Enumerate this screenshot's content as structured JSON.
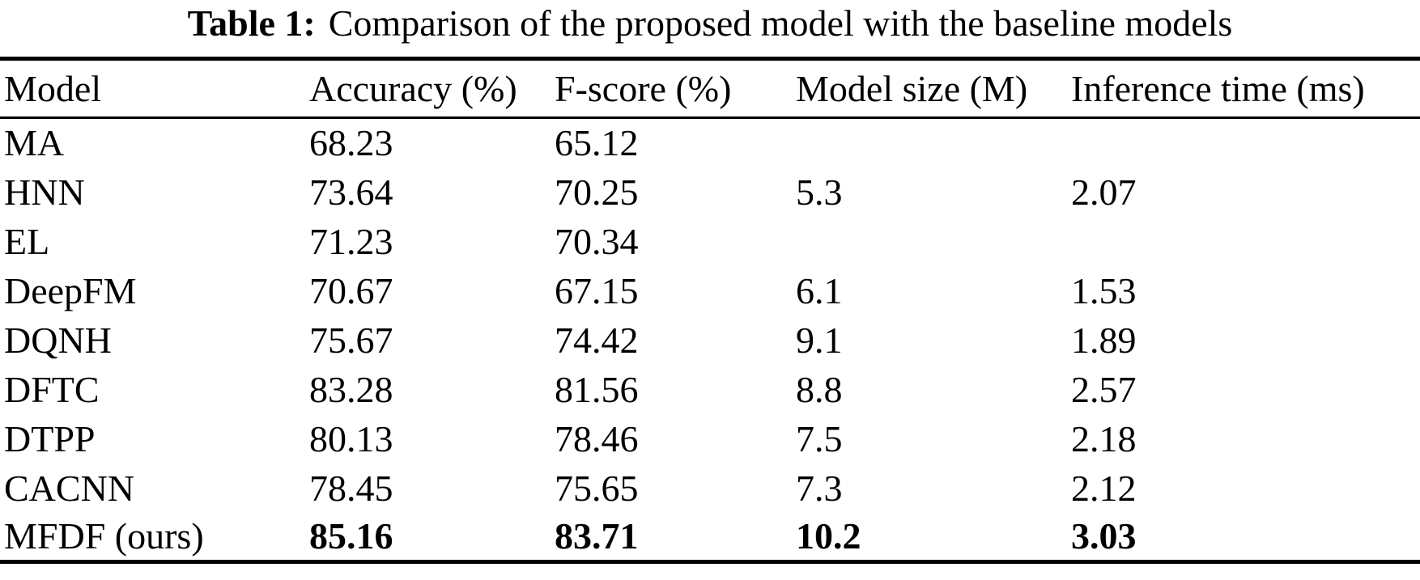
{
  "caption": {
    "label": "Table 1:",
    "text": "Comparison of the proposed model with the baseline models"
  },
  "table": {
    "columns": [
      "Model",
      "Accuracy (%)",
      "F-score (%)",
      "Model size (M)",
      "Inference time (ms)"
    ],
    "rows": [
      {
        "cells": [
          "MA",
          "68.23",
          "65.12",
          "",
          ""
        ],
        "bold": false
      },
      {
        "cells": [
          "HNN",
          "73.64",
          "70.25",
          "5.3",
          "2.07"
        ],
        "bold": false
      },
      {
        "cells": [
          "EL",
          "71.23",
          "70.34",
          "",
          ""
        ],
        "bold": false
      },
      {
        "cells": [
          "DeepFM",
          "70.67",
          "67.15",
          "6.1",
          "1.53"
        ],
        "bold": false
      },
      {
        "cells": [
          "DQNH",
          "75.67",
          "74.42",
          "9.1",
          "1.89"
        ],
        "bold": false
      },
      {
        "cells": [
          "DFTC",
          "83.28",
          "81.56",
          "8.8",
          "2.57"
        ],
        "bold": false
      },
      {
        "cells": [
          "DTPP",
          "80.13",
          "78.46",
          "7.5",
          "2.18"
        ],
        "bold": false
      },
      {
        "cells": [
          "CACNN",
          "78.45",
          "75.65",
          "7.3",
          "2.12"
        ],
        "bold": false
      },
      {
        "cells": [
          "MFDF (ours)",
          "85.16",
          "83.71",
          "10.2",
          "3.03"
        ],
        "bold": true
      }
    ]
  },
  "chart_data": {
    "type": "table",
    "title": "Table 1: Comparison of the proposed model with the baseline models",
    "columns": [
      "Model",
      "Accuracy (%)",
      "F-score (%)",
      "Model size (M)",
      "Inference time (ms)"
    ],
    "rows": [
      [
        "MA",
        68.23,
        65.12,
        null,
        null
      ],
      [
        "HNN",
        73.64,
        70.25,
        5.3,
        2.07
      ],
      [
        "EL",
        71.23,
        70.34,
        null,
        null
      ],
      [
        "DeepFM",
        70.67,
        67.15,
        6.1,
        1.53
      ],
      [
        "DQNH",
        75.67,
        74.42,
        9.1,
        1.89
      ],
      [
        "DFTC",
        83.28,
        81.56,
        8.8,
        2.57
      ],
      [
        "DTPP",
        80.13,
        78.46,
        7.5,
        2.18
      ],
      [
        "CACNN",
        78.45,
        75.65,
        7.3,
        2.12
      ],
      [
        "MFDF (ours)",
        85.16,
        83.71,
        10.2,
        3.03
      ]
    ]
  },
  "colors": {
    "background": "#ffffff",
    "text": "#000000",
    "rule": "#000000"
  }
}
